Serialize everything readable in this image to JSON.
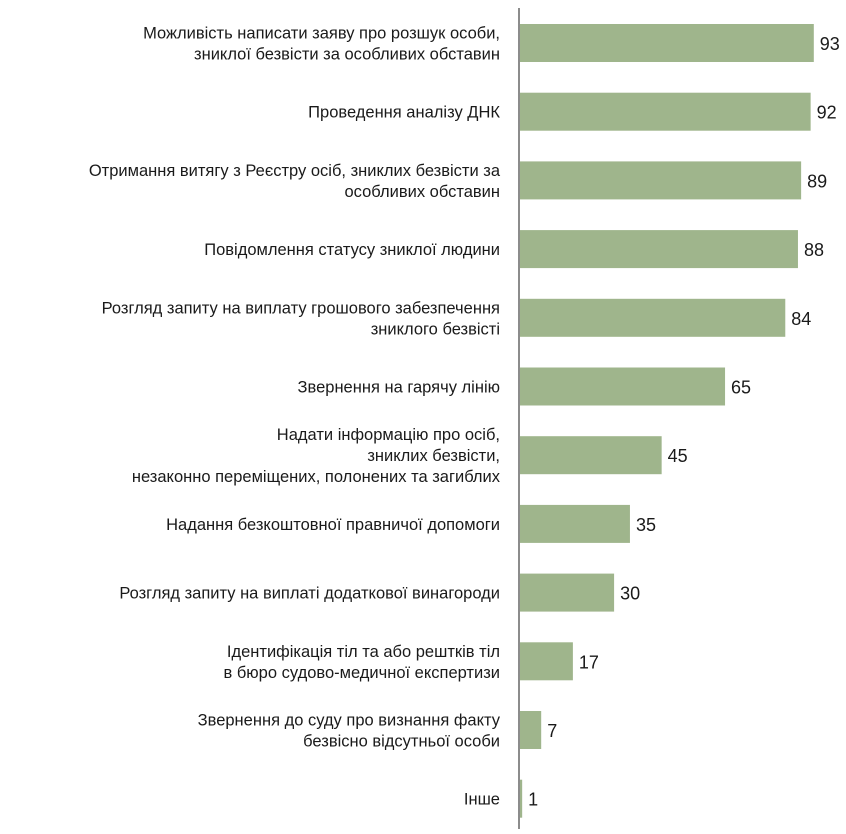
{
  "chart_data": {
    "type": "bar",
    "orientation": "horizontal",
    "title": "",
    "xlabel": "",
    "ylabel": "",
    "xlim": [
      0,
      100
    ],
    "grid": false,
    "legend": "none",
    "bar_color": "#9fb58c",
    "axis_color": "#8c8c8c",
    "categories": [
      [
        "Можливість написати заяву про розшук особи,",
        "зниклої  безвісти за особливих  обставин"
      ],
      [
        "Проведення аналізу ДНК"
      ],
      [
        "Отримання витягу з Реєстру осіб, зниклих безвісти за",
        "особливих обставин"
      ],
      [
        "Повідомлення статусу зниклої людини"
      ],
      [
        "Розгляд запиту на виплату грошового забезпечення",
        "зниклого безвісті"
      ],
      [
        "Звернення на гарячу лінію"
      ],
      [
        "Надати інформацію про осіб,",
        "зниклих безвісти,",
        "незаконно переміщених, полонених та загиблих"
      ],
      [
        "Надання безкоштовної правничої допомоги"
      ],
      [
        "Розгляд запиту на виплаті додаткової винагороди"
      ],
      [
        "Ідентифікація тіл та або рештків тіл",
        "в бюро судово-медичної експертизи"
      ],
      [
        "Звернення до суду про визнання факту",
        "безвісно відсутньої особи"
      ],
      [
        "Інше"
      ]
    ],
    "values": [
      93,
      92,
      89,
      88,
      84,
      65,
      45,
      35,
      30,
      17,
      7,
      1
    ],
    "value_labels": [
      "93",
      "92",
      "89",
      "88",
      "84",
      "65",
      "45",
      "35",
      "30",
      "17",
      "7",
      "1"
    ]
  }
}
